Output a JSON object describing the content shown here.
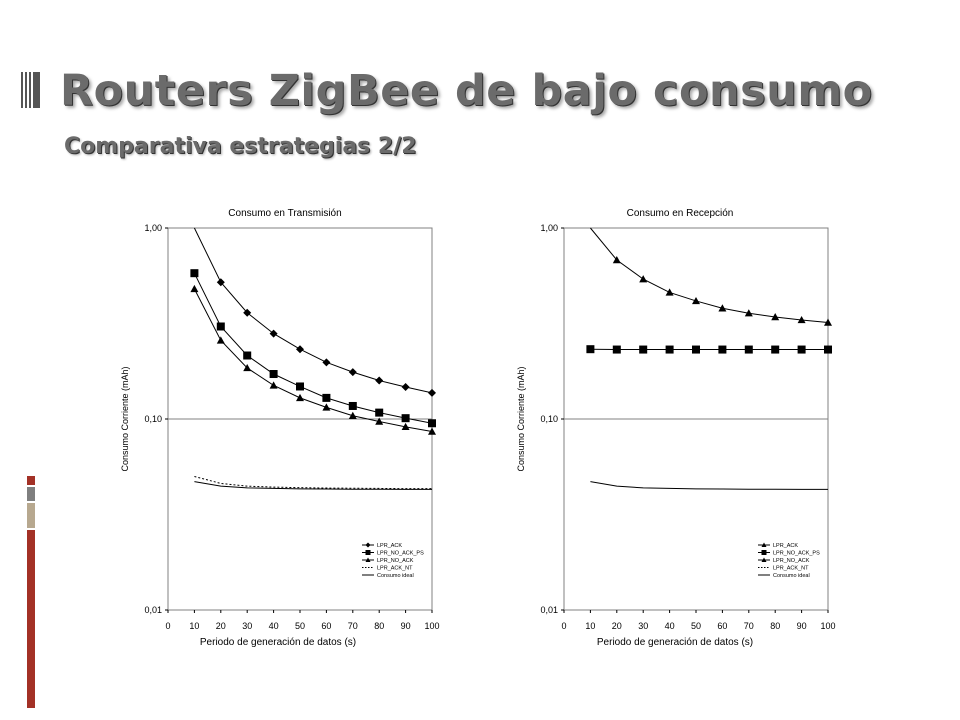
{
  "slide": {
    "title": "Routers ZigBee de bajo consumo",
    "subtitle": "Comparativa estrategias 2/2"
  },
  "colors": {
    "title_text": "#6b6b6b",
    "strip_red": "#a33126",
    "strip_gray": "#7f7f7f",
    "strip_tan": "#b7a88f"
  },
  "chart_data": [
    {
      "type": "line",
      "title": "Consumo en Transmisión",
      "xlabel": "Periodo de generación de datos (s)",
      "ylabel": "Consumo Corriente (mAh)",
      "xlim": [
        0,
        100
      ],
      "ylim": [
        0.01,
        1
      ],
      "yscale": "log",
      "xticks": [
        0,
        10,
        20,
        30,
        40,
        50,
        60,
        70,
        80,
        90,
        100
      ],
      "yticks": [
        {
          "v": 1,
          "label": "1,00"
        },
        {
          "v": 0.1,
          "label": "0,10"
        },
        {
          "v": 0.01,
          "label": "0,01"
        }
      ],
      "grid": "horizontal",
      "legend": "bottom-right",
      "series": [
        {
          "name": "LPR_ACK",
          "marker": "diamond",
          "line": "solid",
          "x": [
            10,
            20,
            30,
            40,
            50,
            60,
            70,
            80,
            90,
            100
          ],
          "y": [
            1.0,
            0.52,
            0.36,
            0.28,
            0.232,
            0.198,
            0.176,
            0.159,
            0.147,
            0.137
          ]
        },
        {
          "name": "LPR_NO_ACK_PS",
          "marker": "square",
          "line": "solid",
          "x": [
            10,
            20,
            30,
            40,
            50,
            60,
            70,
            80,
            90,
            100
          ],
          "y": [
            0.58,
            0.305,
            0.215,
            0.172,
            0.148,
            0.129,
            0.117,
            0.108,
            0.101,
            0.095
          ]
        },
        {
          "name": "LPR_NO_ACK",
          "marker": "triangle",
          "line": "solid",
          "x": [
            10,
            20,
            30,
            40,
            50,
            60,
            70,
            80,
            90,
            100
          ],
          "y": [
            0.48,
            0.258,
            0.185,
            0.15,
            0.129,
            0.115,
            0.104,
            0.097,
            0.091,
            0.086
          ]
        },
        {
          "name": "LPR_ACK_NT",
          "marker": "none",
          "line": "dotted",
          "x": [
            10,
            20,
            30,
            40,
            50,
            60,
            70,
            80,
            90,
            100
          ],
          "y": [
            0.05,
            0.046,
            0.0445,
            0.044,
            0.0437,
            0.0435,
            0.0434,
            0.0433,
            0.0432,
            0.0432
          ]
        },
        {
          "name": "Consumo ideal",
          "marker": "none",
          "line": "solid",
          "x": [
            10,
            20,
            30,
            40,
            50,
            60,
            70,
            80,
            90,
            100
          ],
          "y": [
            0.047,
            0.0445,
            0.0436,
            0.0433,
            0.0431,
            0.043,
            0.0429,
            0.0429,
            0.0428,
            0.0428
          ]
        }
      ]
    },
    {
      "type": "line",
      "title": "Consumo en Recepción",
      "xlabel": "Periodo de generación de datos (s)",
      "ylabel": "Consumo Corriente (mAh)",
      "xlim": [
        0,
        100
      ],
      "ylim": [
        0.01,
        1
      ],
      "yscale": "log",
      "xticks": [
        0,
        10,
        20,
        30,
        40,
        50,
        60,
        70,
        80,
        90,
        100
      ],
      "yticks": [
        {
          "v": 1,
          "label": "1,00"
        },
        {
          "v": 0.1,
          "label": "0,10"
        },
        {
          "v": 0.01,
          "label": "0,01"
        }
      ],
      "grid": "horizontal",
      "legend": "bottom-right",
      "series": [
        {
          "name": "LPR_ACK",
          "marker": "triangle",
          "line": "solid",
          "x": [
            10,
            20,
            30,
            40,
            50,
            60,
            70,
            80,
            90,
            100
          ],
          "y": [
            1.0,
            0.68,
            0.54,
            0.46,
            0.415,
            0.38,
            0.358,
            0.342,
            0.33,
            0.32
          ]
        },
        {
          "name": "LPR_NO_ACK_PS",
          "marker": "square",
          "line": "solid",
          "x": [
            10,
            20,
            30,
            40,
            50,
            60,
            70,
            80,
            90,
            100
          ],
          "y": [
            0.232,
            0.231,
            0.231,
            0.231,
            0.231,
            0.231,
            0.231,
            0.231,
            0.231,
            0.231
          ]
        },
        {
          "name": "LPR_NO_ACK",
          "marker": "triangle",
          "line": "solid",
          "x": [],
          "y": []
        },
        {
          "name": "LPR_ACK_NT",
          "marker": "none",
          "line": "dotted",
          "x": [],
          "y": []
        },
        {
          "name": "Consumo ideal",
          "marker": "none",
          "line": "solid",
          "x": [
            10,
            20,
            30,
            40,
            50,
            60,
            70,
            80,
            90,
            100
          ],
          "y": [
            0.047,
            0.0445,
            0.0436,
            0.0433,
            0.0431,
            0.043,
            0.0429,
            0.0429,
            0.0428,
            0.0428
          ]
        }
      ]
    }
  ]
}
